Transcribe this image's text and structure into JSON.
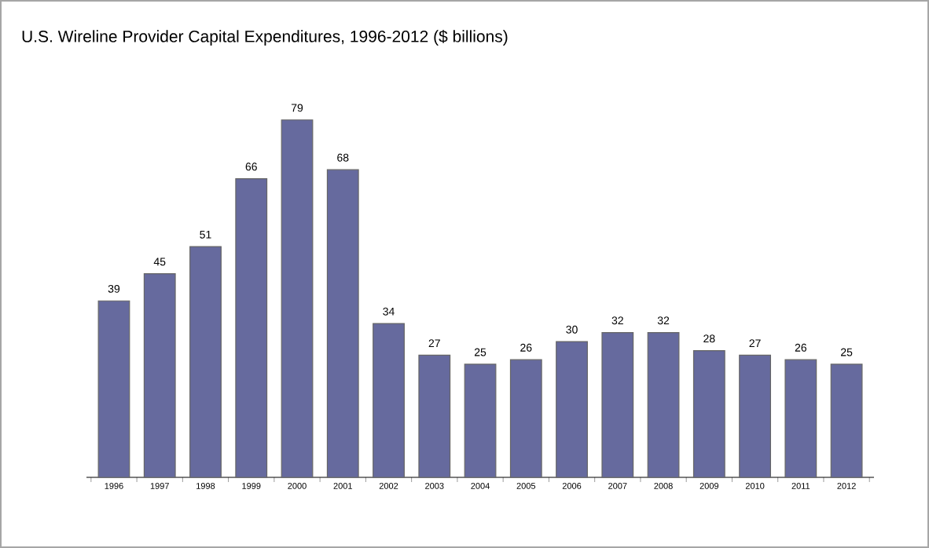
{
  "chart_data": {
    "type": "bar",
    "title": "U.S. Wireline Provider Capital Expenditures, 1996-2012 ($ billions)",
    "categories": [
      "1996",
      "1997",
      "1998",
      "1999",
      "2000",
      "2001",
      "2002",
      "2003",
      "2004",
      "2005",
      "2006",
      "2007",
      "2008",
      "2009",
      "2010",
      "2011",
      "2012"
    ],
    "values": [
      39,
      45,
      51,
      66,
      79,
      68,
      34,
      27,
      25,
      26,
      30,
      32,
      32,
      28,
      27,
      26,
      25
    ],
    "color": "#666a9e",
    "data_labels": true
  }
}
